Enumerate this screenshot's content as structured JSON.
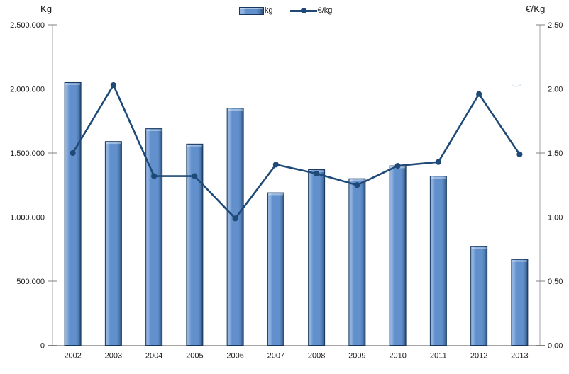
{
  "chart_data": {
    "type": "bar",
    "subtype": "bar-line-combo",
    "title": "",
    "categories": [
      "2002",
      "2003",
      "2004",
      "2005",
      "2006",
      "2007",
      "2008",
      "2009",
      "2010",
      "2011",
      "2012",
      "2013"
    ],
    "series": [
      {
        "name": "kg",
        "type": "bar",
        "axis": "left",
        "color": "#6290cc",
        "values": [
          2050000,
          1590000,
          1690000,
          1570000,
          1850000,
          1190000,
          1370000,
          1300000,
          1400000,
          1320000,
          770000,
          670000
        ]
      },
      {
        "name": "€/kg",
        "type": "line",
        "axis": "right",
        "color": "#1f4a77",
        "values": [
          1.5,
          2.03,
          1.32,
          1.32,
          0.99,
          1.41,
          1.34,
          1.25,
          1.4,
          1.43,
          1.96,
          1.49
        ]
      }
    ],
    "left_axis": {
      "title": "Kg",
      "min": 0,
      "max": 2500000,
      "tick_labels": [
        "0",
        "500.000",
        "1.000.000",
        "1.500.000",
        "2.000.000",
        "2.500.000"
      ]
    },
    "right_axis": {
      "title": "€/Kg",
      "min": 0,
      "max": 2.5,
      "tick_labels": [
        "0,00",
        "0,50",
        "1,00",
        "1,50",
        "2,00",
        "2,50"
      ]
    },
    "legend": [
      {
        "label": "kg",
        "swatch": "bar-swatch-icon"
      },
      {
        "label": "€/kg",
        "swatch": "line-swatch-icon"
      }
    ],
    "legend_position": "top",
    "grid": false
  },
  "colors": {
    "bar_fill": "#6290cc",
    "bar_highlight": "#8fb2de",
    "bar_shadow": "#27486f",
    "bar_border": "#17375e",
    "line": "#1f4a77",
    "axis_line": "#a6a6a6",
    "tick": "#808080",
    "text": "#1a1a1a"
  }
}
